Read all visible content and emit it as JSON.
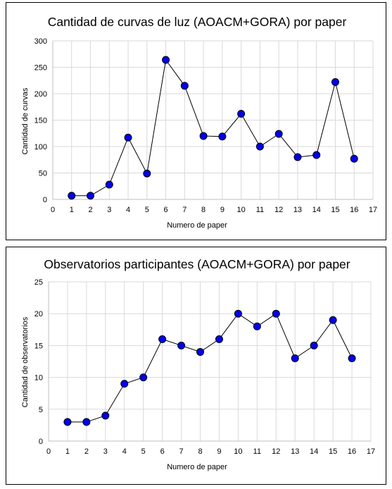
{
  "chart_data": [
    {
      "type": "line",
      "title": "Cantidad de curvas de luz (AOACM+GORA) por paper",
      "xlabel": "Numero de paper",
      "ylabel": "Cantidad de curvas",
      "xlim": [
        0,
        17
      ],
      "ylim": [
        0,
        300
      ],
      "xticks": [
        0,
        1,
        2,
        3,
        4,
        5,
        6,
        7,
        8,
        9,
        10,
        11,
        12,
        13,
        14,
        15,
        16,
        17
      ],
      "yticks": [
        0,
        50,
        100,
        150,
        200,
        250,
        300
      ],
      "grid": true,
      "x": [
        1,
        2,
        3,
        4,
        5,
        6,
        7,
        8,
        9,
        10,
        11,
        12,
        13,
        14,
        15,
        16
      ],
      "values": [
        7,
        7,
        28,
        117,
        49,
        264,
        215,
        120,
        119,
        162,
        100,
        124,
        80,
        84,
        222,
        77
      ],
      "colors": {
        "marker": "#0000ee",
        "line": "#000000",
        "grid": "#d9d9d9"
      }
    },
    {
      "type": "line",
      "title": "Observatorios participantes (AOACM+GORA) por paper",
      "xlabel": "Numero de paper",
      "ylabel": "Cantidad de observatorios",
      "xlim": [
        0,
        17
      ],
      "ylim": [
        0,
        25
      ],
      "xticks": [
        0,
        1,
        2,
        3,
        4,
        5,
        6,
        7,
        8,
        9,
        10,
        11,
        12,
        13,
        14,
        15,
        16,
        17
      ],
      "yticks": [
        0,
        5,
        10,
        15,
        20,
        25
      ],
      "grid": true,
      "x": [
        1,
        2,
        3,
        4,
        5,
        6,
        7,
        8,
        9,
        10,
        11,
        12,
        13,
        14,
        15,
        16
      ],
      "values": [
        3,
        3,
        4,
        9,
        10,
        16,
        15,
        14,
        16,
        20,
        18,
        20,
        13,
        15,
        19,
        13
      ],
      "colors": {
        "marker": "#0000ee",
        "line": "#000000",
        "grid": "#d9d9d9"
      }
    }
  ]
}
